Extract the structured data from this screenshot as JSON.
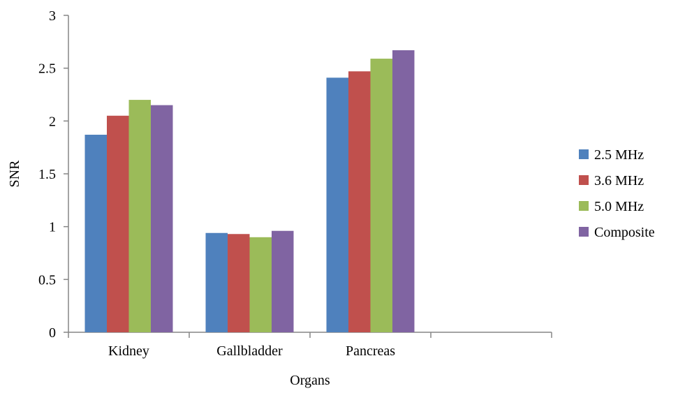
{
  "chart_data": {
    "type": "bar",
    "title": "",
    "xlabel": "Organs",
    "ylabel": "SNR",
    "ylim": [
      0,
      3
    ],
    "yticks": [
      "0",
      "0.5",
      "1",
      "1.5",
      "2",
      "2.5",
      "3"
    ],
    "categories": [
      "Kidney",
      "Gallbladder",
      "Pancreas",
      ""
    ],
    "series": [
      {
        "name": "2.5 MHz",
        "color": "#4F81BD",
        "values": [
          1.87,
          0.94,
          2.41,
          null
        ]
      },
      {
        "name": "3.6 MHz",
        "color": "#C0504D",
        "values": [
          2.05,
          0.93,
          2.47,
          null
        ]
      },
      {
        "name": "5.0 MHz",
        "color": "#9BBB59",
        "values": [
          2.2,
          0.9,
          2.59,
          null
        ]
      },
      {
        "name": "Composite",
        "color": "#8064A2",
        "values": [
          2.15,
          0.96,
          2.67,
          null
        ]
      }
    ],
    "grid": false,
    "legend": "right"
  }
}
